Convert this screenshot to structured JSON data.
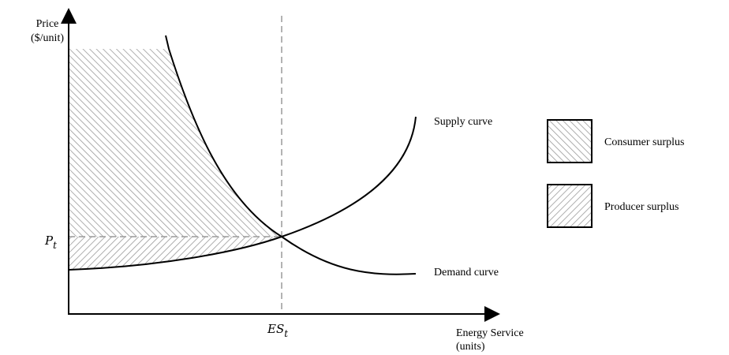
{
  "axes": {
    "y_label": [
      "Price",
      "($/unit)"
    ],
    "x_label": [
      "Energy Service",
      "(units)"
    ],
    "price_marker": {
      "base": "P",
      "sub": "t"
    },
    "quantity_marker": {
      "base": "ES",
      "sub": "t"
    }
  },
  "curves": {
    "supply": "Supply curve",
    "demand": "Demand curve"
  },
  "legend": [
    "Consumer surplus",
    "Producer surplus"
  ]
}
